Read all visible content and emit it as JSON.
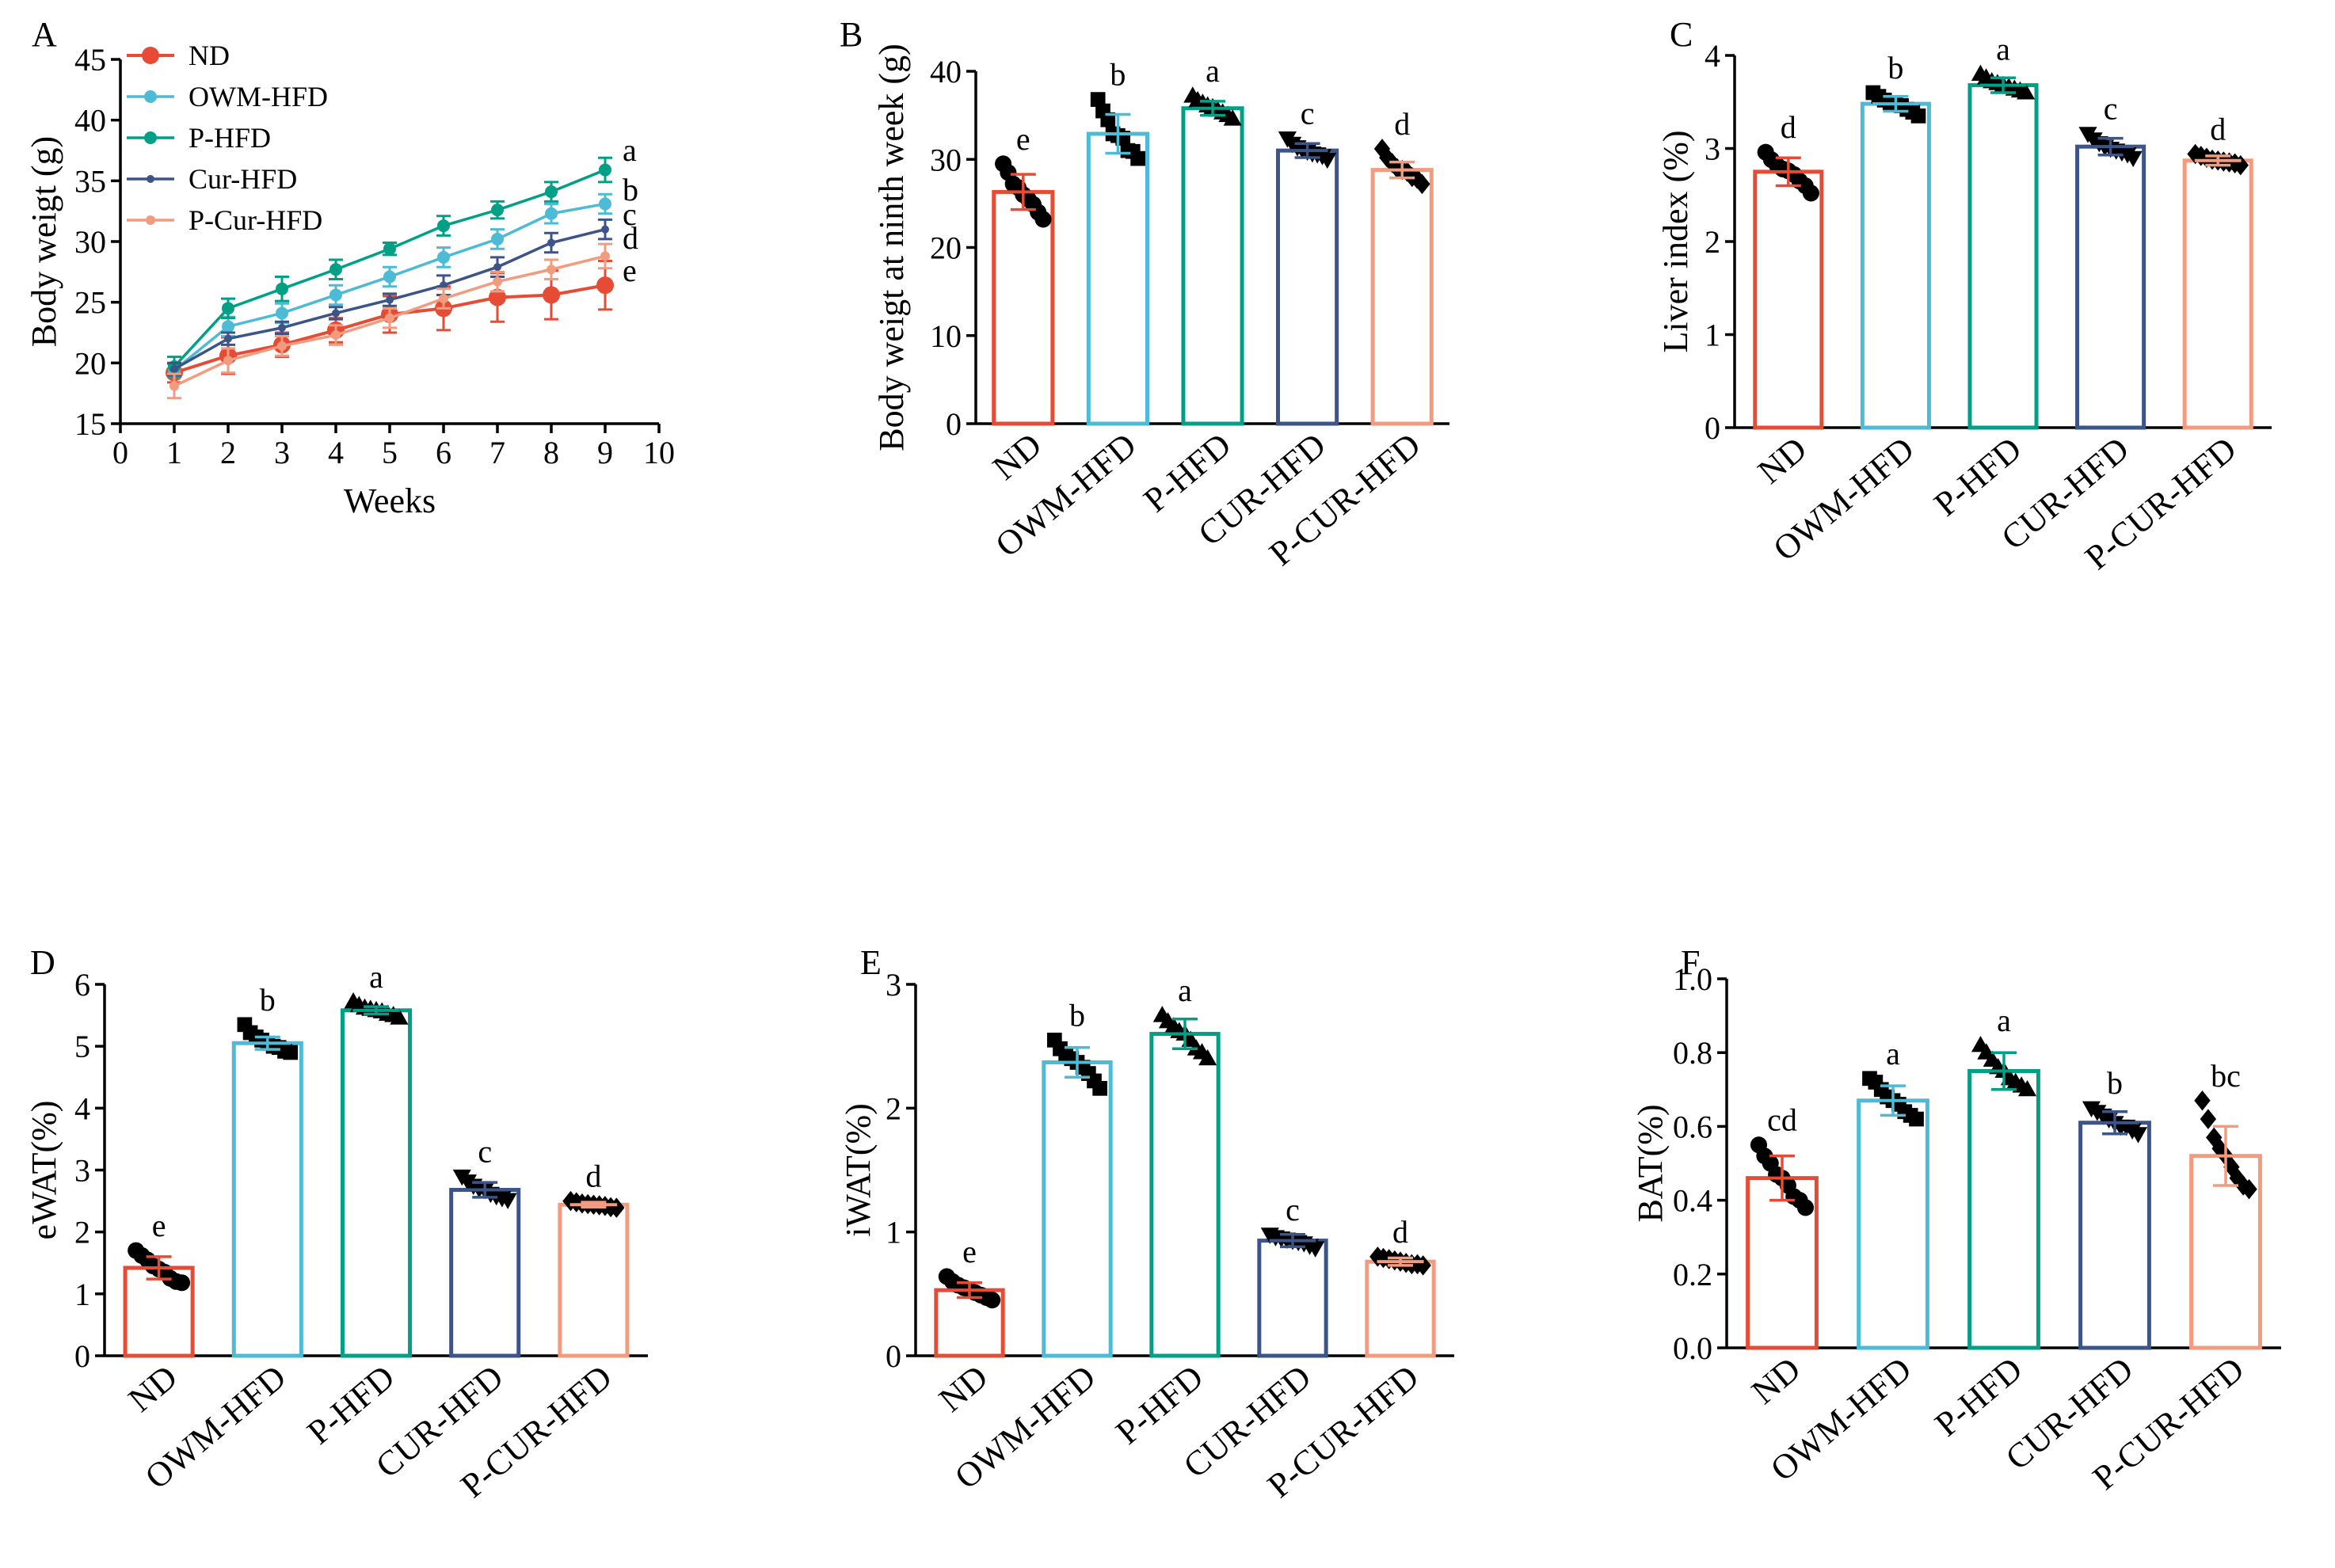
{
  "colors": {
    "ND": "#e64b35",
    "OWM-HFD": "#4dbbd5",
    "P-HFD": "#00a087",
    "Cur-HFD": "#3c5488",
    "P-Cur-HFD": "#f39b7f"
  },
  "chart_data": [
    {
      "panel": "A",
      "type": "line",
      "xlabel": "Weeks",
      "ylabel": "Body weigt (g)",
      "xlim": [
        0,
        10
      ],
      "ylim": [
        15,
        45
      ],
      "xticks": [
        0,
        1,
        2,
        3,
        4,
        5,
        6,
        7,
        8,
        9,
        10
      ],
      "yticks": [
        15,
        20,
        25,
        30,
        35,
        40,
        45
      ],
      "legend": "top-left",
      "x": [
        1,
        2,
        3,
        4,
        5,
        6,
        7,
        8,
        9
      ],
      "series": [
        {
          "name": "ND",
          "values": [
            19.2,
            20.6,
            21.5,
            22.7,
            24.0,
            24.5,
            25.4,
            25.6,
            26.4
          ],
          "err": [
            0.8,
            1.5,
            1.0,
            1.0,
            1.5,
            1.8,
            2.0,
            2.0,
            2.0
          ],
          "sig": "e"
        },
        {
          "name": "OWM-HFD",
          "values": [
            19.4,
            23.0,
            24.1,
            25.6,
            27.1,
            28.7,
            30.2,
            32.3,
            33.1
          ],
          "err": [
            0.5,
            0.8,
            0.8,
            0.8,
            0.8,
            0.8,
            0.8,
            0.8,
            0.8
          ],
          "sig": "b"
        },
        {
          "name": "P-HFD",
          "values": [
            19.7,
            24.5,
            26.1,
            27.7,
            29.4,
            31.3,
            32.6,
            34.1,
            35.9
          ],
          "err": [
            0.8,
            0.8,
            1.0,
            0.8,
            0.5,
            0.8,
            0.7,
            0.8,
            1.0
          ],
          "sig": "a"
        },
        {
          "name": "Cur-HFD",
          "values": [
            19.5,
            22.0,
            22.9,
            24.1,
            25.2,
            26.4,
            27.9,
            29.9,
            31.0
          ],
          "err": [
            0.5,
            0.5,
            0.5,
            0.5,
            0.5,
            0.8,
            0.8,
            0.8,
            0.8
          ],
          "sig": "c"
        },
        {
          "name": "P-Cur-HFD",
          "values": [
            18.1,
            20.2,
            21.4,
            22.3,
            23.7,
            25.3,
            26.7,
            27.7,
            28.8
          ],
          "err": [
            1.0,
            1.0,
            0.8,
            0.8,
            0.8,
            0.8,
            0.8,
            0.8,
            1.0
          ],
          "sig": "d"
        }
      ]
    },
    {
      "panel": "B",
      "type": "bar",
      "ylabel": "Body weigt at ninth week (g)",
      "ylim": [
        0,
        40
      ],
      "yticks": [
        0,
        10,
        20,
        30,
        40
      ],
      "categories": [
        "ND",
        "OWM-HFD",
        "P-HFD",
        "CUR-HFD",
        "P-CUR-HFD"
      ],
      "values": [
        26.3,
        32.9,
        35.8,
        31.0,
        28.8
      ],
      "err": [
        2.0,
        2.2,
        0.8,
        0.8,
        0.9
      ],
      "sig": [
        "e",
        "b",
        "a",
        "c",
        "d"
      ],
      "points": [
        [
          29.5,
          28.5,
          27.2,
          26.8,
          26.0,
          25.5,
          24.9,
          24.0,
          23.2
        ],
        [
          36.8,
          35.5,
          34.5,
          32.9,
          32.7,
          32.4,
          31.0,
          30.9,
          30.1
        ],
        [
          37.2,
          36.7,
          36.4,
          36.1,
          35.9,
          35.6,
          35.3,
          35.0,
          34.6
        ],
        [
          32.4,
          31.8,
          31.4,
          31.1,
          30.9,
          30.7,
          30.6,
          30.4,
          30.0
        ],
        [
          31.2,
          30.2,
          29.6,
          29.0,
          28.8,
          28.6,
          28.0,
          27.8,
          27.2
        ]
      ]
    },
    {
      "panel": "C",
      "type": "bar",
      "ylabel": "Liver index (%)",
      "ylim": [
        0,
        4
      ],
      "yticks": [
        0,
        1,
        2,
        3,
        4
      ],
      "categories": [
        "ND",
        "OWM-HFD",
        "P-HFD",
        "CUR-HFD",
        "P-CUR-HFD"
      ],
      "values": [
        2.75,
        3.48,
        3.68,
        3.02,
        2.87
      ],
      "err": [
        0.15,
        0.08,
        0.08,
        0.09,
        0.05
      ],
      "sig": [
        "d",
        "b",
        "a",
        "c",
        "d"
      ],
      "points": [
        [
          2.96,
          2.88,
          2.82,
          2.78,
          2.76,
          2.72,
          2.65,
          2.6,
          2.52
        ],
        [
          3.6,
          3.56,
          3.52,
          3.49,
          3.48,
          3.46,
          3.42,
          3.39,
          3.35
        ],
        [
          3.8,
          3.76,
          3.72,
          3.7,
          3.68,
          3.66,
          3.64,
          3.62,
          3.6
        ],
        [
          3.16,
          3.1,
          3.06,
          3.02,
          3.0,
          2.98,
          2.96,
          2.94,
          2.9
        ],
        [
          2.94,
          2.92,
          2.9,
          2.88,
          2.87,
          2.86,
          2.85,
          2.84,
          2.82
        ]
      ]
    },
    {
      "panel": "D",
      "type": "bar",
      "ylabel": "eWAT(%)",
      "ylim": [
        0,
        6
      ],
      "yticks": [
        0,
        1,
        2,
        3,
        4,
        5,
        6
      ],
      "categories": [
        "ND",
        "OWM-HFD",
        "P-HFD",
        "CUR-HFD",
        "P-CUR-HFD"
      ],
      "values": [
        1.42,
        5.05,
        5.58,
        2.68,
        2.44
      ],
      "err": [
        0.18,
        0.1,
        0.06,
        0.12,
        0.04
      ],
      "sig": [
        "e",
        "b",
        "a",
        "c",
        "d"
      ],
      "points": [
        [
          1.7,
          1.62,
          1.55,
          1.45,
          1.4,
          1.35,
          1.25,
          1.2,
          1.18
        ],
        [
          5.35,
          5.22,
          5.15,
          5.1,
          5.05,
          5.0,
          4.98,
          4.92,
          4.9
        ],
        [
          5.72,
          5.66,
          5.62,
          5.6,
          5.58,
          5.56,
          5.52,
          5.5,
          5.46
        ],
        [
          2.9,
          2.82,
          2.75,
          2.7,
          2.68,
          2.62,
          2.58,
          2.55,
          2.52
        ],
        [
          2.5,
          2.48,
          2.46,
          2.45,
          2.44,
          2.43,
          2.42,
          2.4,
          2.39
        ]
      ]
    },
    {
      "panel": "E",
      "type": "bar",
      "ylabel": "iWAT(%)",
      "ylim": [
        0,
        3
      ],
      "yticks": [
        0,
        1,
        2,
        3
      ],
      "categories": [
        "ND",
        "OWM-HFD",
        "P-HFD",
        "CUR-HFD",
        "P-CUR-HFD"
      ],
      "values": [
        0.53,
        2.37,
        2.6,
        0.93,
        0.76
      ],
      "err": [
        0.06,
        0.12,
        0.12,
        0.05,
        0.03
      ],
      "sig": [
        "e",
        "b",
        "a",
        "c",
        "d"
      ],
      "points": [
        [
          0.64,
          0.6,
          0.57,
          0.55,
          0.53,
          0.51,
          0.49,
          0.47,
          0.45
        ],
        [
          2.55,
          2.48,
          2.44,
          2.4,
          2.37,
          2.33,
          2.28,
          2.22,
          2.16
        ],
        [
          2.75,
          2.7,
          2.66,
          2.62,
          2.6,
          2.55,
          2.48,
          2.45,
          2.4
        ],
        [
          0.98,
          0.96,
          0.95,
          0.94,
          0.93,
          0.92,
          0.91,
          0.89,
          0.87
        ],
        [
          0.8,
          0.79,
          0.78,
          0.77,
          0.76,
          0.75,
          0.74,
          0.74,
          0.73
        ]
      ]
    },
    {
      "panel": "F",
      "type": "bar",
      "ylabel": "BAT(%)",
      "ylim": [
        0,
        1.0
      ],
      "yticks": [
        0.0,
        0.2,
        0.4,
        0.6,
        0.8,
        1.0
      ],
      "ytick_labels": [
        "0.0",
        "0.2",
        "0.4",
        "0.6",
        "0.8",
        "1.0"
      ],
      "categories": [
        "ND",
        "OWM-HFD",
        "P-HFD",
        "CUR-HFD",
        "P-CUR-HFD"
      ],
      "values": [
        0.46,
        0.67,
        0.75,
        0.61,
        0.52
      ],
      "err": [
        0.06,
        0.04,
        0.05,
        0.03,
        0.08
      ],
      "sig": [
        "cd",
        "a",
        "a",
        "b",
        "bc"
      ],
      "points": [
        [
          0.55,
          0.52,
          0.5,
          0.47,
          0.46,
          0.44,
          0.41,
          0.4,
          0.38
        ],
        [
          0.73,
          0.72,
          0.7,
          0.68,
          0.67,
          0.66,
          0.64,
          0.63,
          0.62
        ],
        [
          0.82,
          0.8,
          0.78,
          0.76,
          0.75,
          0.73,
          0.72,
          0.71,
          0.7
        ],
        [
          0.65,
          0.64,
          0.63,
          0.62,
          0.61,
          0.6,
          0.6,
          0.59,
          0.58
        ],
        [
          0.67,
          0.62,
          0.57,
          0.54,
          0.52,
          0.49,
          0.46,
          0.44,
          0.43
        ]
      ]
    }
  ]
}
